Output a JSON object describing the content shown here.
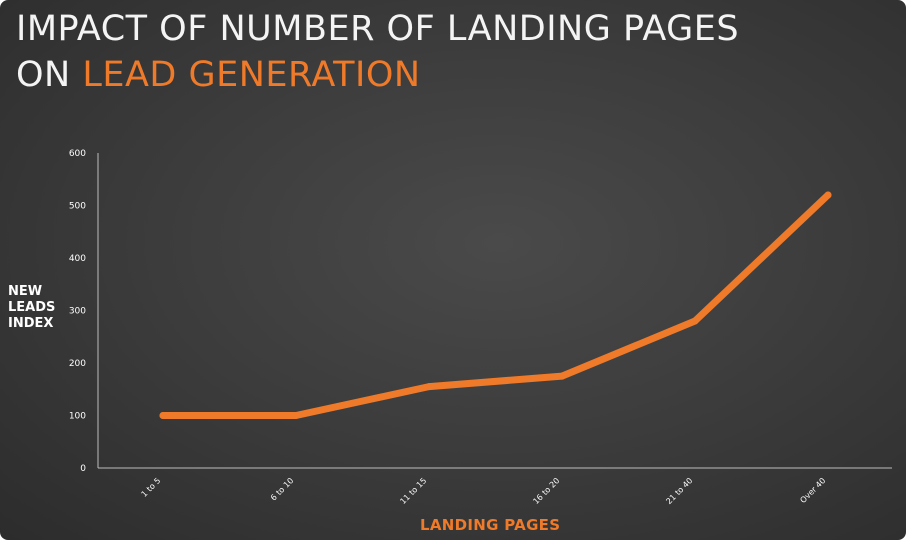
{
  "title": {
    "line1": "IMPACT OF NUMBER OF LANDING PAGES",
    "line2_prefix": "ON ",
    "line2_accent": "LEAD GENERATION"
  },
  "chart_data": {
    "type": "line",
    "categories": [
      "1 to 5",
      "6 to 10",
      "11 to 15",
      "16 to 20",
      "21 to 40",
      "Over 40"
    ],
    "series": [
      {
        "values": [
          100,
          100,
          155,
          175,
          280,
          520
        ]
      }
    ],
    "xlabel": "LANDING PAGES",
    "ylabel_lines": [
      "NEW",
      "LEADS",
      "INDEX"
    ],
    "ylim": [
      0,
      600
    ],
    "yticks": [
      0,
      100,
      200,
      300,
      400,
      500,
      600
    ],
    "grid": false,
    "legend": "none",
    "colors": {
      "line": "#ee7a2a",
      "axis": "#bdbdbd",
      "text": "#ffffff",
      "accent": "#ee7a2a"
    }
  }
}
